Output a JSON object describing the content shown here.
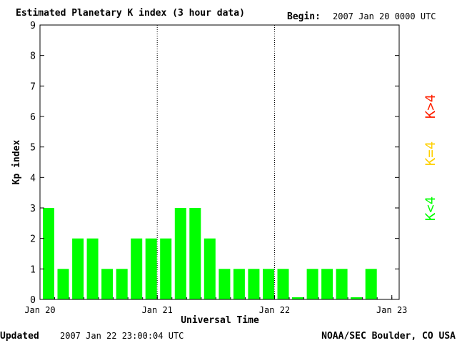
{
  "header": {
    "title": "Estimated Planetary K index (3 hour data)",
    "begin_label": "Begin:",
    "begin_value": "2007 Jan 20 0000 UTC"
  },
  "footer": {
    "updated_label": "Updated",
    "updated_value": "2007 Jan 22 23:00:04 UTC",
    "source": "NOAA/SEC Boulder, CO USA"
  },
  "legend": {
    "items": [
      {
        "label": "K<4",
        "color": "#00ff00"
      },
      {
        "label": "K=4",
        "color": "#ffd000"
      },
      {
        "label": "K>4",
        "color": "#ff2000"
      }
    ]
  },
  "chart_data": {
    "type": "bar",
    "title": "Estimated Planetary K index (3 hour data)",
    "xlabel": "Universal Time",
    "ylabel": "Kp index",
    "ylim": [
      0,
      9
    ],
    "yticks": [
      0,
      1,
      2,
      3,
      4,
      5,
      6,
      7,
      8,
      9
    ],
    "xticks": [
      "Jan 20",
      "Jan 21",
      "Jan 22",
      "Jan 23"
    ],
    "interval_hours": 3,
    "values": [
      3,
      1,
      2,
      2,
      1,
      1,
      2,
      2,
      2,
      3,
      3,
      2,
      1,
      1,
      1,
      1,
      1,
      0,
      1,
      1,
      1,
      0,
      1
    ],
    "bar_color": "#00ff00",
    "day_separators": [
      "Jan 21",
      "Jan 22"
    ]
  }
}
